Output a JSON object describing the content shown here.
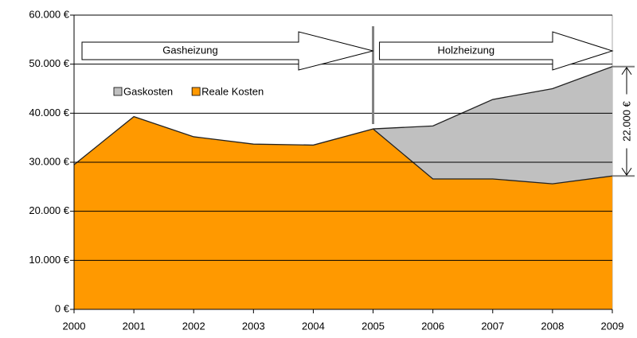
{
  "chart_data": {
    "type": "area",
    "x": [
      2000,
      2001,
      2002,
      2003,
      2004,
      2005,
      2006,
      2007,
      2008,
      2009
    ],
    "xlim": [
      2000,
      2009
    ],
    "xticks": [
      2000,
      2001,
      2002,
      2003,
      2004,
      2005,
      2006,
      2007,
      2008,
      2009
    ],
    "ylim": [
      0,
      60000
    ],
    "yticks": [
      {
        "value": 0,
        "label": "0 €"
      },
      {
        "value": 10000,
        "label": "10.000 €"
      },
      {
        "value": 20000,
        "label": "20.000 €"
      },
      {
        "value": 30000,
        "label": "30.000 €"
      },
      {
        "value": 40000,
        "label": "40.000 €"
      },
      {
        "value": 50000,
        "label": "50.000 €"
      },
      {
        "value": 60000,
        "label": "60.000 €"
      }
    ],
    "grid": true,
    "series": [
      {
        "name": "Gaskosten",
        "color": "#c0c0c0",
        "values": [
          null,
          null,
          null,
          null,
          null,
          36800,
          37400,
          42800,
          45000,
          49500
        ]
      },
      {
        "name": "Reale Kosten",
        "color": "#ff9900",
        "values": [
          29500,
          39300,
          35200,
          33700,
          33500,
          36800,
          26600,
          26600,
          25600,
          27200
        ]
      }
    ],
    "annotations": {
      "gas": "Gasheizung",
      "holz": "Holzheizung",
      "difference": "22.000 €"
    }
  }
}
